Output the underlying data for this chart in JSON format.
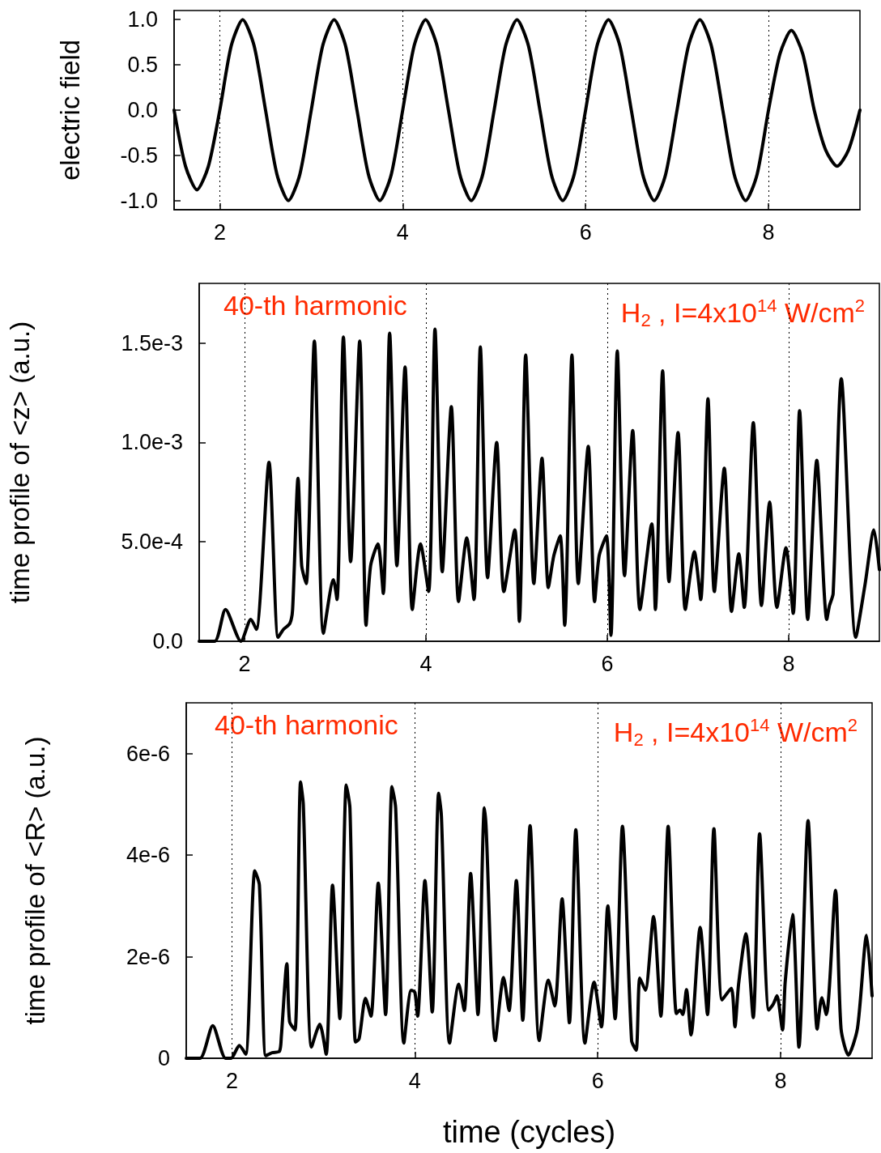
{
  "chart_data": [
    {
      "type": "line",
      "ylabel": "electric field",
      "xlim": [
        1.5,
        9
      ],
      "ylim": [
        -1.1,
        1.1
      ],
      "xticks": [
        2,
        4,
        6,
        8
      ],
      "yticks": [
        {
          "value": -1,
          "label": "-1.0"
        },
        {
          "value": -0.5,
          "label": "-0.5"
        },
        {
          "value": 0,
          "label": "0.0"
        },
        {
          "value": 0.5,
          "label": "0.5"
        },
        {
          "value": 1,
          "label": "1.0"
        }
      ],
      "grid": "x",
      "marker": "none",
      "line_style": "solid",
      "series": [
        {
          "color": "#000000",
          "x": [
            1.5,
            1.625,
            1.75,
            1.875,
            2,
            2.125,
            2.25,
            2.375,
            2.5,
            2.625,
            2.75,
            2.875,
            3,
            3.125,
            3.25,
            3.375,
            3.5,
            3.625,
            3.75,
            3.875,
            4,
            4.125,
            4.25,
            4.375,
            4.5,
            4.625,
            4.75,
            4.875,
            5,
            5.125,
            5.25,
            5.375,
            5.5,
            5.625,
            5.75,
            5.875,
            6,
            6.125,
            6.25,
            6.375,
            6.5,
            6.625,
            6.75,
            6.875,
            7,
            7.125,
            7.25,
            7.375,
            7.5,
            7.625,
            7.75,
            7.875,
            8,
            8.125,
            8.25,
            8.375,
            8.5,
            8.625,
            8.75,
            8.875,
            9
          ],
          "values": [
            0,
            -0.62,
            -0.88,
            -0.62,
            0,
            0.71,
            1,
            0.71,
            0,
            -0.71,
            -1,
            -0.71,
            0,
            0.71,
            1,
            0.71,
            0,
            -0.71,
            -1,
            -0.71,
            0,
            0.71,
            1,
            0.71,
            0,
            -0.71,
            -1,
            -0.71,
            0,
            0.71,
            1,
            0.71,
            0,
            -0.71,
            -1,
            -0.71,
            0,
            0.71,
            1,
            0.71,
            0,
            -0.71,
            -1,
            -0.71,
            0,
            0.71,
            1,
            0.71,
            0,
            -0.71,
            -1,
            -0.71,
            0,
            0.62,
            0.88,
            0.62,
            0,
            -0.44,
            -0.62,
            -0.44,
            0
          ]
        }
      ]
    },
    {
      "type": "line",
      "ylabel": "time profile of <z> (a.u.)",
      "annotations": [
        "40-th harmonic",
        "H$_{2}$ , I=4x10$^{14}$ W/cm$^{2}$"
      ],
      "xlim": [
        1.5,
        9
      ],
      "ylim": [
        0,
        0.0018
      ],
      "xticks": [
        2,
        4,
        6,
        8
      ],
      "yticks": [
        {
          "value": 0,
          "label": "0.0"
        },
        {
          "value": 0.0005,
          "label": "5.0e-4"
        },
        {
          "value": 0.001,
          "label": "1.0e-3"
        },
        {
          "value": 0.0015,
          "label": "1.5e-3"
        }
      ],
      "grid": "x",
      "marker": "none",
      "line_style": "solid",
      "series": [
        {
          "color": "#000000",
          "x": [
            1.5,
            1.67,
            1.79,
            1.96,
            2.07,
            2.13,
            2.27,
            2.37,
            2.43,
            2.5,
            2.53,
            2.59,
            2.63,
            2.68,
            2.77,
            2.87,
            2.98,
            3.02,
            3.09,
            3.17,
            3.27,
            3.34,
            3.39,
            3.47,
            3.53,
            3.6,
            3.68,
            3.77,
            3.85,
            3.94,
            4.03,
            4.1,
            4.18,
            4.28,
            4.36,
            4.45,
            4.53,
            4.6,
            4.68,
            4.78,
            4.86,
            4.98,
            5.03,
            5.1,
            5.19,
            5.28,
            5.35,
            5.41,
            5.48,
            5.53,
            5.61,
            5.68,
            5.79,
            5.86,
            5.91,
            5.99,
            6.04,
            6.11,
            6.19,
            6.28,
            6.36,
            6.49,
            6.53,
            6.61,
            6.68,
            6.78,
            6.86,
            6.96,
            7.03,
            7.11,
            7.18,
            7.29,
            7.37,
            7.45,
            7.51,
            7.61,
            7.7,
            7.79,
            7.87,
            7.97,
            8.05,
            8.12,
            8.21,
            8.31,
            8.42,
            8.45,
            8.49,
            8.58,
            8.74,
            8.84,
            8.94,
            9
          ],
          "values": [
            0,
            0,
            0.00016,
            0,
            0.00011,
            6e-05,
            0.0009,
            2e-05,
            6e-05,
            9e-05,
            0.00016,
            0.00082,
            0.00038,
            0.00029,
            0.00151,
            4e-05,
            0.00031,
            0.00021,
            0.00153,
            0.0004,
            0.00151,
            8e-05,
            0.00038,
            0.00049,
            0.00024,
            0.00155,
            0.00038,
            0.00138,
            0.00016,
            0.00049,
            0.00025,
            0.00157,
            0.00035,
            0.00118,
            0.0002,
            0.00052,
            0.00021,
            0.00148,
            0.00032,
            0.001,
            0.00025,
            0.00056,
            0.0001,
            0.00144,
            0.00029,
            0.00092,
            0.00027,
            0.00043,
            0.00053,
            8e-05,
            0.00144,
            0.00029,
            0.00098,
            0.0002,
            0.00043,
            0.00053,
            3e-05,
            0.00146,
            0.00033,
            0.00106,
            0.00016,
            0.00059,
            0.00016,
            0.00136,
            0.0003,
            0.00105,
            0.00016,
            0.00045,
            0.00021,
            0.00122,
            0.00025,
            0.00087,
            0.00015,
            0.00044,
            0.00017,
            0.0011,
            0.00018,
            0.0007,
            0.00017,
            0.00047,
            0.00014,
            0.00116,
            0.00011,
            0.00091,
            0.00011,
            0.00018,
            0.00024,
            0.00132,
            2e-05,
            0.00028,
            0.00056,
            0.00036
          ]
        }
      ]
    },
    {
      "type": "line",
      "xlabel": "time (cycles)",
      "ylabel": "time profile of <R> (a.u.)",
      "annotations": [
        "40-th harmonic",
        "H$_{2}$ , I=4x10$^{14}$ W/cm$^{2}$"
      ],
      "xlim": [
        1.5,
        9
      ],
      "ylim": [
        0,
        7e-06
      ],
      "xticks": [
        2,
        4,
        6,
        8
      ],
      "yticks": [
        0,
        {
          "value": 2e-06,
          "label": "2e-6"
        },
        {
          "value": 4e-06,
          "label": "4e-6"
        },
        {
          "value": 6e-06,
          "label": "6e-6"
        }
      ],
      "grid": "x",
      "marker": "none",
      "line_style": "solid",
      "series": [
        {
          "color": "#000000",
          "x": [
            1.5,
            1.65,
            1.79,
            1.93,
            1.99,
            2.08,
            2.15,
            2.25,
            2.3,
            2.37,
            2.44,
            2.52,
            2.54,
            2.6,
            2.63,
            2.69,
            2.75,
            2.78,
            2.87,
            2.96,
            3.03,
            3.1,
            3.18,
            3.25,
            3.29,
            3.35,
            3.39,
            3.46,
            3.52,
            3.6,
            3.68,
            3.75,
            3.79,
            3.88,
            3.96,
            4,
            4.03,
            4.11,
            4.19,
            4.26,
            4.29,
            4.38,
            4.48,
            4.54,
            4.61,
            4.69,
            4.76,
            4.78,
            4.88,
            4.97,
            5.03,
            5.11,
            5.18,
            5.26,
            5.36,
            5.46,
            5.53,
            5.61,
            5.69,
            5.76,
            5.86,
            5.96,
            6.04,
            6.11,
            6.19,
            6.27,
            6.37,
            6.42,
            6.46,
            6.52,
            6.61,
            6.69,
            6.77,
            6.86,
            6.9,
            6.93,
            6.97,
            7.02,
            7.12,
            7.2,
            7.27,
            7.36,
            7.46,
            7.5,
            7.54,
            7.62,
            7.7,
            7.77,
            7.87,
            7.92,
            7.96,
            8.02,
            8.05,
            8.13,
            8.2,
            8.3,
            8.4,
            8.45,
            8.5,
            8.6,
            8.66,
            8.74,
            8.84,
            8.94,
            9
          ],
          "values": [
            0,
            0,
            6.4e-07,
            0,
            0,
            2.5e-07,
            8e-08,
            3.69e-06,
            3.41e-06,
            5e-08,
            1.1e-07,
            1.4e-07,
            4.3e-07,
            1.86e-06,
            7.2e-07,
            5.6e-07,
            5.44e-06,
            5e-06,
            2.2e-07,
            6.7e-07,
            8e-08,
            3.41e-06,
            7.8e-07,
            5.38e-06,
            4.93e-06,
            3.2e-07,
            3.8e-07,
            1.18e-06,
            8.3e-07,
            3.45e-06,
            8.6e-07,
            5.35e-06,
            4.93e-06,
            3e-07,
            1.34e-06,
            1.3e-06,
            8.3e-07,
            3.5e-06,
            9.1e-07,
            5.22e-06,
            4.78e-06,
            3e-07,
            1.46e-06,
            9.4e-07,
            3.64e-06,
            8.6e-07,
            4.93e-06,
            4.52e-06,
            3.5e-07,
            1.59e-06,
            9.4e-07,
            3.5e-06,
            7.5e-07,
            4.58e-06,
            3.5e-07,
            1.54e-06,
            1.03e-06,
            3.14e-06,
            7e-07,
            4.5e-06,
            3e-07,
            1.5e-06,
            6.2e-07,
            3e-06,
            7.8e-07,
            4.57e-06,
            3.5e-07,
            1.6e-07,
            1.58e-06,
            1.34e-06,
            2.79e-06,
            8.3e-07,
            4.57e-06,
            8.8e-07,
            9.5e-07,
            8.6e-07,
            1.35e-06,
            4.6e-07,
            2.58e-06,
            8.6e-07,
            4.52e-06,
            1.15e-06,
            1.38e-06,
            6.2e-07,
            1.46e-06,
            2.45e-06,
            8e-07,
            4.42e-06,
            9.5e-07,
            1.07e-06,
            1.23e-06,
            5.6e-07,
            1.51e-06,
            2.83e-06,
            2.2e-07,
            4.68e-06,
            5.7e-07,
            1.19e-06,
            8.6e-07,
            3.31e-06,
            5.9e-07,
            6e-08,
            5.9e-07,
            2.42e-06,
            1.23e-06
          ]
        }
      ]
    }
  ]
}
